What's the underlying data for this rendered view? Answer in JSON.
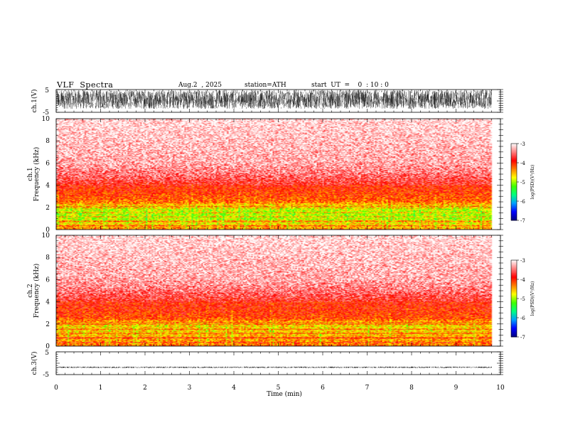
{
  "header": {
    "title": "VLF  Spectra",
    "date": "Aug.2  , 2025",
    "station": "station=ATH",
    "start_ut": "start  UT  =    0  : 10 : 0"
  },
  "colors": {
    "spectrum_scale": [
      "#000080",
      "#0000ff",
      "#00a0ff",
      "#00ff80",
      "#40ff00",
      "#ffff00",
      "#ff8000",
      "#ff0000",
      "#ff8080",
      "#ffffff"
    ]
  },
  "chart_data": [
    {
      "type": "line",
      "name": "ch1-waveform",
      "ylabel": "ch.1(V)",
      "ylim": [
        -5,
        5
      ],
      "y_ticks": [
        "5",
        "-5"
      ],
      "xlim": [
        0,
        10
      ],
      "data_extent_min": 9.8,
      "amplitude_range": [
        -3.5,
        4.8
      ]
    },
    {
      "type": "heatmap",
      "name": "ch1-spectrogram",
      "ylabel": "ch.1\nFrequency  (kHz)",
      "ylim": [
        0,
        10
      ],
      "y_ticks": [
        "0",
        "2",
        "4",
        "6",
        "8",
        "10"
      ],
      "xlim": [
        0,
        10
      ],
      "data_extent_min": 9.8,
      "profile_khz": [
        0,
        0.5,
        1.0,
        1.5,
        2.0,
        2.5,
        3.0,
        4.0,
        5.0,
        6.0,
        8.0,
        10.0
      ],
      "profile_log_psd": [
        -4.3,
        -4.6,
        -4.9,
        -4.9,
        -4.8,
        -4.2,
        -4.1,
        -3.9,
        -3.6,
        -3.4,
        -3.3,
        -3.2
      ],
      "colorbar": {
        "label": "log(PSD)(V²/Hz)",
        "range": [
          -7,
          -3
        ],
        "ticks": [
          "-3",
          "-4",
          "-5",
          "-6",
          "-7"
        ]
      }
    },
    {
      "type": "heatmap",
      "name": "ch2-spectrogram",
      "ylabel": "ch.2\nFrequency  (kHz)",
      "ylim": [
        0,
        10
      ],
      "y_ticks": [
        "0",
        "2",
        "4",
        "6",
        "8",
        "10"
      ],
      "xlim": [
        0,
        10
      ],
      "data_extent_min": 9.8,
      "profile_khz": [
        0,
        0.5,
        1.0,
        1.5,
        2.0,
        2.5,
        3.0,
        4.0,
        5.0,
        6.0,
        8.0,
        10.0
      ],
      "profile_log_psd": [
        -4.2,
        -4.4,
        -4.5,
        -4.6,
        -4.6,
        -4.1,
        -4.0,
        -3.9,
        -3.6,
        -3.4,
        -3.3,
        -3.2
      ],
      "colorbar": {
        "label": "log(PSD)(V²/Hz)",
        "range": [
          -7,
          -3
        ],
        "ticks": [
          "-3",
          "-4",
          "-5",
          "-6",
          "-7"
        ]
      }
    },
    {
      "type": "line",
      "name": "ch3-waveform",
      "ylabel": "ch.3(V)",
      "ylim": [
        -5,
        5
      ],
      "y_ticks": [
        "5",
        "-5"
      ],
      "xlim": [
        0,
        10
      ],
      "data_extent_min": 9.8,
      "level": -1.8,
      "amplitude_range": [
        -2.1,
        -1.5
      ],
      "xlabel": "Time  (min)",
      "x_ticks": [
        "0",
        "1",
        "2",
        "3",
        "4",
        "5",
        "6",
        "7",
        "8",
        "9",
        "10"
      ]
    }
  ]
}
